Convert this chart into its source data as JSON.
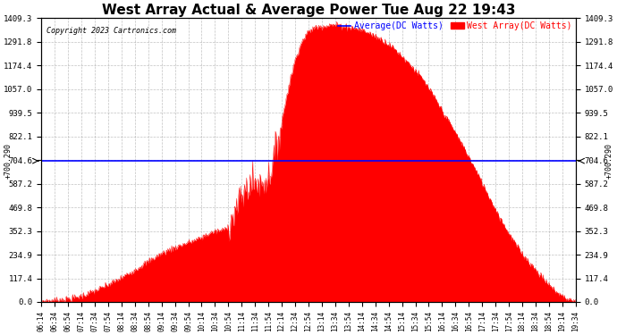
{
  "title": "West Array Actual & Average Power Tue Aug 22 19:43",
  "copyright": "Copyright 2023 Cartronics.com",
  "average_value": 700.29,
  "average_label": "Average(DC Watts)",
  "series_label": "West Array(DC Watts)",
  "ymin": 0.0,
  "ymax": 1409.3,
  "yticks": [
    0.0,
    117.4,
    234.9,
    352.3,
    469.8,
    587.2,
    704.6,
    822.1,
    939.5,
    1057.0,
    1174.4,
    1291.8,
    1409.3
  ],
  "xtick_labels": [
    "06:14",
    "06:34",
    "06:54",
    "07:14",
    "07:34",
    "07:54",
    "08:14",
    "08:34",
    "08:54",
    "09:14",
    "09:34",
    "09:54",
    "10:14",
    "10:34",
    "10:54",
    "11:14",
    "11:34",
    "11:54",
    "12:14",
    "12:34",
    "12:54",
    "13:14",
    "13:34",
    "13:54",
    "14:14",
    "14:34",
    "14:54",
    "15:14",
    "15:34",
    "15:54",
    "16:14",
    "16:34",
    "16:54",
    "17:14",
    "17:34",
    "17:54",
    "18:14",
    "18:34",
    "18:54",
    "19:14",
    "19:34"
  ],
  "fill_color": "#ff0000",
  "fill_alpha": 1.0,
  "line_color": "#0000ff",
  "background_color": "#ffffff",
  "grid_color": "#999999",
  "title_fontsize": 11,
  "average_annotation": "+700.290",
  "figwidth": 6.9,
  "figheight": 3.75,
  "dpi": 100
}
